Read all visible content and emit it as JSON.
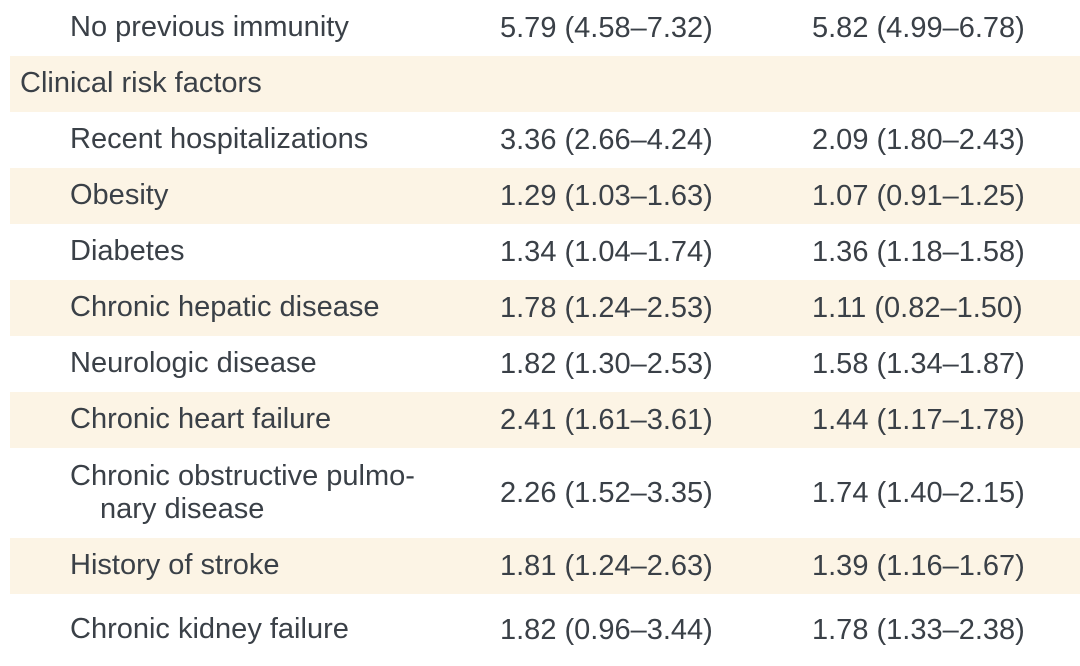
{
  "colors": {
    "stripe": "#fcf4e5",
    "text": "#3a4047",
    "background": "#ffffff"
  },
  "table": {
    "description": "Table fragment listing risk factors with two columns of estimates shown as value (95% CI range)",
    "rows": [
      {
        "label": "No previous immunity",
        "indent": "item",
        "col1": "5.79 (4.58–7.32)",
        "col2": "5.82 (4.99–6.78)"
      },
      {
        "label": "Clinical risk factors",
        "indent": "category",
        "col1": "",
        "col2": ""
      },
      {
        "label": "Recent hospitalizations",
        "indent": "item",
        "col1": "3.36 (2.66–4.24)",
        "col2": "2.09 (1.80–2.43)"
      },
      {
        "label": "Obesity",
        "indent": "item",
        "col1": "1.29 (1.03–1.63)",
        "col2": "1.07 (0.91–1.25)"
      },
      {
        "label": "Diabetes",
        "indent": "item",
        "col1": "1.34 (1.04–1.74)",
        "col2": "1.36 (1.18–1.58)"
      },
      {
        "label": "Chronic hepatic disease",
        "indent": "item",
        "col1": "1.78 (1.24–2.53)",
        "col2": "1.11 (0.82–1.50)"
      },
      {
        "label": "Neurologic disease",
        "indent": "item",
        "col1": "1.82 (1.30–2.53)",
        "col2": "1.58 (1.34–1.87)"
      },
      {
        "label": "Chronic heart failure",
        "indent": "item",
        "col1": "2.41 (1.61–3.61)",
        "col2": "1.44 (1.17–1.78)"
      },
      {
        "label": "Chronic obstructive pulmo-\nnary disease",
        "indent": "item",
        "col1": "2.26 (1.52–3.35)",
        "col2": "1.74 (1.40–2.15)"
      },
      {
        "label": "History of stroke",
        "indent": "item",
        "col1": "1.81 (1.24–2.63)",
        "col2": "1.39 (1.16–1.67)"
      },
      {
        "label": "Chronic kidney failure",
        "indent": "item",
        "col1": "1.82 (0.96–3.44)",
        "col2": "1.78 (1.33–2.38)"
      }
    ]
  }
}
